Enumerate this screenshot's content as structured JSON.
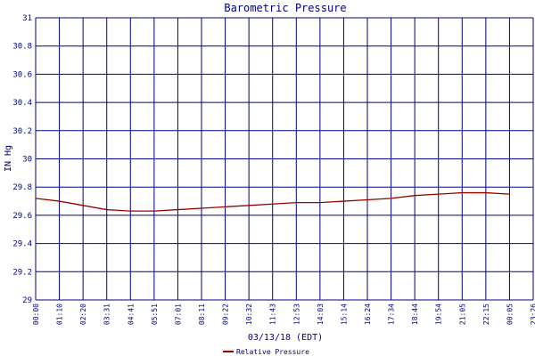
{
  "chart_data": {
    "type": "line",
    "title": "Barometric Pressure",
    "xlabel": "03/13/18 (EDT)",
    "ylabel": "IN Hg",
    "ylim": [
      29,
      31
    ],
    "yticks": [
      "29",
      "29.2",
      "29.4",
      "29.6",
      "29.8",
      "30",
      "30.2",
      "30.4",
      "30.6",
      "30.8",
      "31"
    ],
    "xticks": [
      "00:00",
      "01:10",
      "02:20",
      "03:31",
      "04:41",
      "05:51",
      "07:01",
      "08:11",
      "09:22",
      "10:32",
      "11:43",
      "12:53",
      "14:03",
      "15:14",
      "16:24",
      "17:34",
      "18:44",
      "19:54",
      "21:05",
      "22:15",
      "00:05",
      "23:26"
    ],
    "grid": true,
    "legend_position": "bottom-center",
    "colors": {
      "series": "#990000",
      "grid": "#000080",
      "text": "#000080"
    },
    "series": [
      {
        "name": "Relative Pressure",
        "x": [
          "00:00",
          "01:10",
          "02:20",
          "03:31",
          "04:41",
          "05:51",
          "07:01",
          "08:11",
          "09:22",
          "10:32",
          "11:43",
          "12:53",
          "14:03",
          "15:14",
          "16:24",
          "17:34",
          "18:44",
          "19:54",
          "21:05",
          "22:15",
          "00:05"
        ],
        "values": [
          29.72,
          29.7,
          29.67,
          29.64,
          29.63,
          29.63,
          29.64,
          29.65,
          29.66,
          29.67,
          29.68,
          29.69,
          29.69,
          29.7,
          29.71,
          29.72,
          29.74,
          29.75,
          29.76,
          29.76,
          29.75
        ]
      }
    ]
  }
}
